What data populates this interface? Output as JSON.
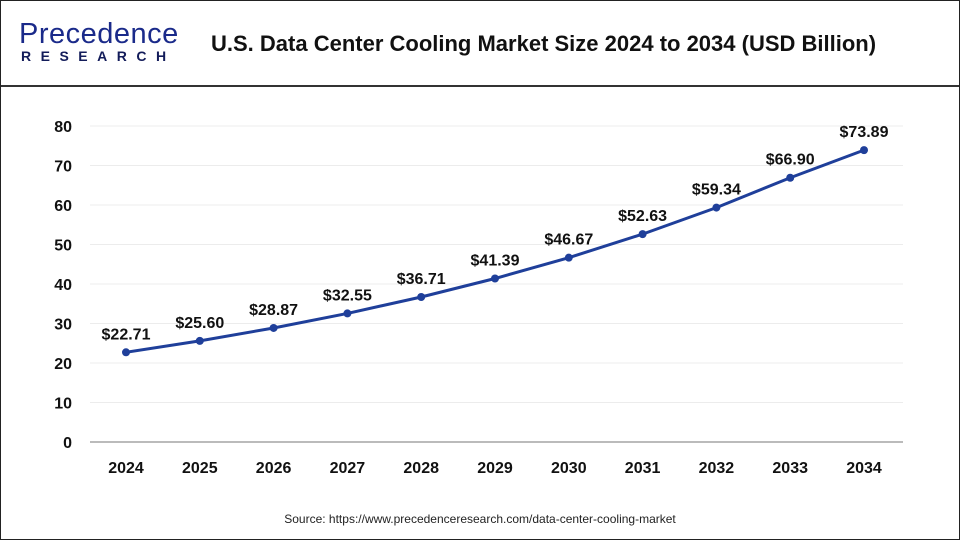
{
  "logo": {
    "line1": "Precedence",
    "line2": "RESEARCH"
  },
  "header": {
    "title": "U.S. Data Center Cooling Market Size 2024 to 2034 (USD Billion)"
  },
  "source": "Source: https://www.precedenceresearch.com/data-center-cooling-market",
  "chart_data": {
    "type": "line",
    "title": "U.S. Data Center Cooling Market Size 2024 to 2034 (USD Billion)",
    "categories": [
      "2024",
      "2025",
      "2026",
      "2027",
      "2028",
      "2029",
      "2030",
      "2031",
      "2032",
      "2033",
      "2034"
    ],
    "values": [
      22.71,
      25.6,
      28.87,
      32.55,
      36.71,
      41.39,
      46.67,
      52.63,
      59.34,
      66.9,
      73.89
    ],
    "data_labels": [
      "$22.71",
      "$25.60",
      "$28.87",
      "$32.55",
      "$36.71",
      "$41.39",
      "$46.67",
      "$52.63",
      "$59.34",
      "$66.90",
      "$73.89"
    ],
    "yticks": [
      "0",
      "10",
      "20",
      "30",
      "40",
      "50",
      "60",
      "70",
      "80"
    ],
    "ylim": [
      0,
      80
    ],
    "grid": true,
    "line_color": "#1f3f9a",
    "grid_color": "#ececec"
  }
}
